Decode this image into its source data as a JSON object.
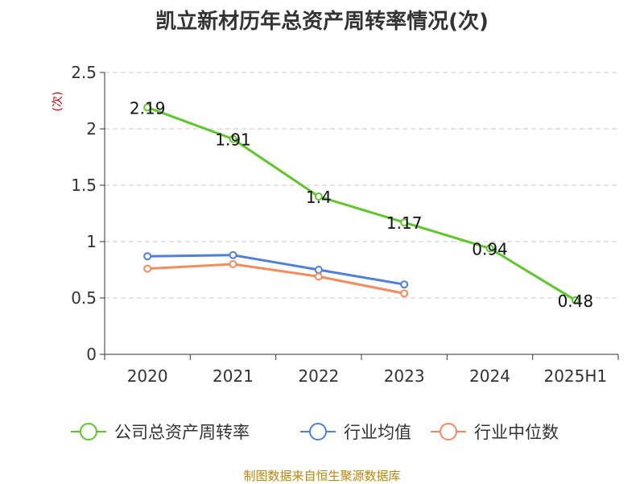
{
  "chart_data": {
    "type": "line",
    "title": "凯立新材历年总资产周转率情况(次)",
    "ylabel": "(次)",
    "ylim": [
      0,
      2.5
    ],
    "yticks": [
      "0",
      "0.5",
      "1",
      "1.5",
      "2",
      "2.5"
    ],
    "categories": [
      "2020",
      "2021",
      "2022",
      "2023",
      "2024",
      "2025H1"
    ],
    "series": [
      {
        "name": "公司总资产周转率",
        "color": "#5ec72a",
        "values": [
          2.19,
          1.91,
          1.4,
          1.17,
          0.94,
          0.48
        ],
        "labels": [
          "2.19",
          "1.91",
          "1.4",
          "1.17",
          "0.94",
          "0.48"
        ]
      },
      {
        "name": "行业均值",
        "color": "#4f7fdc",
        "values": [
          0.87,
          0.88,
          0.75,
          0.62,
          null,
          null
        ]
      },
      {
        "name": "行业中位数",
        "color": "#f58a5c",
        "values": [
          0.76,
          0.8,
          0.69,
          0.54,
          null,
          null
        ]
      }
    ],
    "grid": true,
    "legend": "bottom"
  },
  "source": "制图数据来自恒生聚源数据库"
}
